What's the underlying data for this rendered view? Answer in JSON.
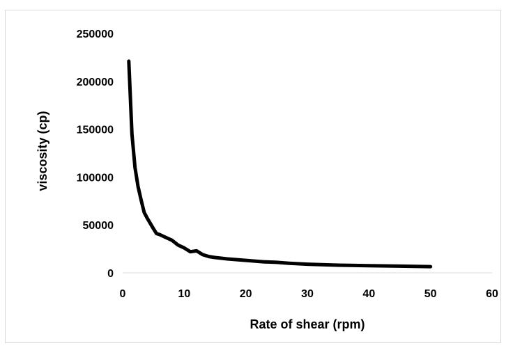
{
  "chart_data": {
    "type": "line",
    "title": "",
    "xlabel": "Rate of shear (rpm)",
    "ylabel": "viscosity (cp)",
    "xlim": [
      0,
      60
    ],
    "ylim": [
      0,
      250000
    ],
    "x_ticks": [
      0,
      10,
      20,
      30,
      40,
      50,
      60
    ],
    "y_ticks": [
      0,
      50000,
      100000,
      150000,
      200000,
      250000
    ],
    "grid": false,
    "legend": "none",
    "series": [
      {
        "color": "#000000",
        "x": [
          1,
          1.5,
          2,
          2.5,
          3,
          3.5,
          4,
          5,
          5.5,
          6,
          7,
          8,
          9,
          10,
          11,
          12,
          13,
          14,
          15,
          17,
          20,
          23,
          25,
          27,
          30,
          35,
          40,
          45,
          50
        ],
        "y": [
          221000,
          145000,
          110000,
          90000,
          76000,
          63000,
          57000,
          46000,
          41000,
          40000,
          37000,
          34000,
          29000,
          26000,
          22000,
          23000,
          19000,
          17000,
          16000,
          14500,
          13000,
          11500,
          11000,
          10000,
          9000,
          8000,
          7500,
          7000,
          6500
        ]
      }
    ]
  }
}
